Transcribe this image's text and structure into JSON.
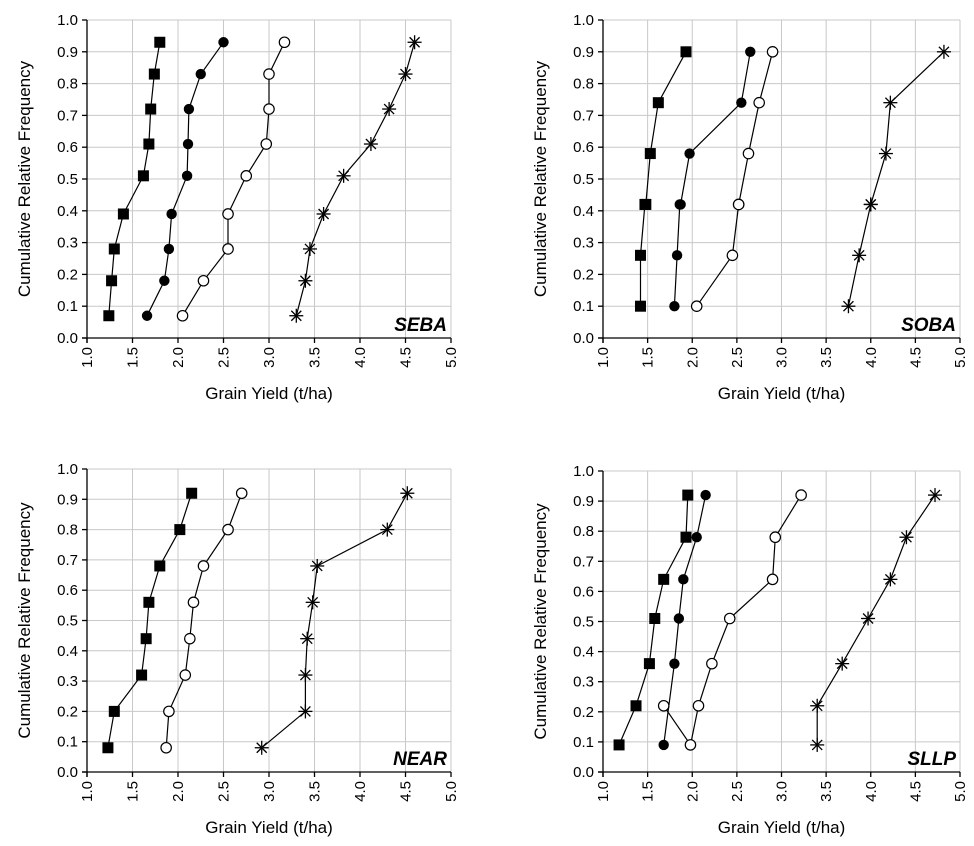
{
  "chart_data": [
    {
      "type": "line",
      "panel_label": "SEBA",
      "xlabel": "Grain Yield (t/ha)",
      "ylabel": "Cumulative Relative Frequency",
      "xlim": [
        1.0,
        5.0
      ],
      "ylim": [
        0.0,
        1.0
      ],
      "xticks": [
        "1.0",
        "1.5",
        "2.0",
        "2.5",
        "3.0",
        "3.5",
        "4.0",
        "4.5",
        "5.0"
      ],
      "yticks": [
        "0.0",
        "0.1",
        "0.2",
        "0.3",
        "0.4",
        "0.5",
        "0.6",
        "0.7",
        "0.8",
        "0.9",
        "1.0"
      ],
      "grid": true,
      "series": [
        {
          "marker": "square-filled",
          "x": [
            1.24,
            1.27,
            1.3,
            1.4,
            1.62,
            1.68,
            1.7,
            1.74,
            1.8
          ],
          "y": [
            0.07,
            0.18,
            0.28,
            0.39,
            0.51,
            0.61,
            0.72,
            0.83,
            0.93
          ]
        },
        {
          "marker": "circle-filled",
          "x": [
            1.66,
            1.85,
            1.9,
            1.93,
            2.1,
            2.11,
            2.12,
            2.25,
            2.5
          ],
          "y": [
            0.07,
            0.18,
            0.28,
            0.39,
            0.51,
            0.61,
            0.72,
            0.83,
            0.93
          ]
        },
        {
          "marker": "circle-open",
          "x": [
            2.05,
            2.28,
            2.55,
            2.55,
            2.75,
            2.97,
            3.0,
            3.0,
            3.17
          ],
          "y": [
            0.07,
            0.18,
            0.28,
            0.39,
            0.51,
            0.61,
            0.72,
            0.83,
            0.93
          ]
        },
        {
          "marker": "asterisk",
          "x": [
            3.3,
            3.4,
            3.45,
            3.6,
            3.82,
            4.12,
            4.32,
            4.5,
            4.6
          ],
          "y": [
            0.07,
            0.18,
            0.28,
            0.39,
            0.51,
            0.61,
            0.72,
            0.83,
            0.93
          ]
        }
      ]
    },
    {
      "type": "line",
      "panel_label": "SOBA",
      "xlabel": "Grain Yield (t/ha)",
      "ylabel": "Cumulative Relative Frequency",
      "xlim": [
        1.0,
        5.0
      ],
      "ylim": [
        0.0,
        1.0
      ],
      "xticks": [
        "1.0",
        "1.5",
        "2.0",
        "2.5",
        "3.0",
        "3.5",
        "4.0",
        "4.5",
        "5.0"
      ],
      "yticks": [
        "0.0",
        "0.1",
        "0.2",
        "0.3",
        "0.4",
        "0.5",
        "0.6",
        "0.7",
        "0.8",
        "0.9",
        "1.0"
      ],
      "grid": true,
      "series": [
        {
          "marker": "square-filled",
          "x": [
            1.42,
            1.42,
            1.47,
            1.48,
            1.53,
            1.62,
            1.93
          ],
          "y": [
            0.1,
            0.26,
            0.42,
            0.42,
            0.58,
            0.74,
            0.9
          ]
        },
        {
          "marker": "circle-filled",
          "x": [
            1.8,
            1.83,
            1.86,
            1.87,
            1.97,
            2.55,
            2.65
          ],
          "y": [
            0.1,
            0.26,
            0.42,
            0.42,
            0.58,
            0.74,
            0.9
          ]
        },
        {
          "marker": "circle-open",
          "x": [
            2.05,
            2.45,
            2.52,
            2.52,
            2.63,
            2.75,
            2.9
          ],
          "y": [
            0.1,
            0.26,
            0.42,
            0.42,
            0.58,
            0.74,
            0.9
          ]
        },
        {
          "marker": "asterisk",
          "x": [
            3.75,
            3.87,
            4.0,
            4.0,
            4.17,
            4.22,
            4.82
          ],
          "y": [
            0.1,
            0.26,
            0.42,
            0.42,
            0.58,
            0.74,
            0.9
          ]
        }
      ]
    },
    {
      "type": "line",
      "panel_label": "NEAR",
      "xlabel": "Grain Yield (t/ha)",
      "ylabel": "Cumulative Relative Frequency",
      "xlim": [
        1.0,
        5.0
      ],
      "ylim": [
        0.0,
        1.0
      ],
      "xticks": [
        "1.0",
        "1.5",
        "2.0",
        "2.5",
        "3.0",
        "3.5",
        "4.0",
        "4.5",
        "5.0"
      ],
      "yticks": [
        "0.0",
        "0.1",
        "0.2",
        "0.3",
        "0.4",
        "0.5",
        "0.6",
        "0.7",
        "0.8",
        "0.9",
        "1.0"
      ],
      "grid": true,
      "series": [
        {
          "marker": "square-filled",
          "x": [
            1.23,
            1.3,
            1.6,
            1.65,
            1.68,
            1.8,
            2.02,
            2.15
          ],
          "y": [
            0.08,
            0.2,
            0.32,
            0.44,
            0.56,
            0.68,
            0.8,
            0.92
          ]
        },
        {
          "marker": "circle-filled",
          "x": [],
          "y": []
        },
        {
          "marker": "circle-open",
          "x": [
            1.87,
            1.9,
            2.08,
            2.13,
            2.17,
            2.28,
            2.55,
            2.7
          ],
          "y": [
            0.08,
            0.2,
            0.32,
            0.44,
            0.56,
            0.68,
            0.8,
            0.92
          ]
        },
        {
          "marker": "asterisk",
          "x": [
            2.92,
            3.4,
            3.4,
            3.42,
            3.48,
            3.53,
            4.3,
            4.52
          ],
          "y": [
            0.08,
            0.2,
            0.32,
            0.44,
            0.56,
            0.68,
            0.8,
            0.92
          ]
        }
      ]
    },
    {
      "type": "line",
      "panel_label": "SLLP",
      "xlabel": "Grain Yield (t/ha)",
      "ylabel": "Cumulative Relative Frequency",
      "xlim": [
        1.0,
        5.0
      ],
      "ylim": [
        0.0,
        1.0
      ],
      "xticks": [
        "1.0",
        "1.5",
        "2.0",
        "2.5",
        "3.0",
        "3.5",
        "4.0",
        "4.5",
        "5.0"
      ],
      "yticks": [
        "0.0",
        "0.1",
        "0.2",
        "0.3",
        "0.4",
        "0.5",
        "0.6",
        "0.7",
        "0.8",
        "0.9",
        "1.0"
      ],
      "grid": true,
      "series": [
        {
          "marker": "square-filled",
          "x": [
            1.18,
            1.37,
            1.52,
            1.58,
            1.68,
            1.93,
            1.95
          ],
          "y": [
            0.09,
            0.22,
            0.36,
            0.51,
            0.64,
            0.78,
            0.92
          ]
        },
        {
          "marker": "circle-filled",
          "x": [
            1.68,
            1.8,
            1.85,
            1.9,
            2.05,
            2.15
          ],
          "y": [
            0.09,
            0.36,
            0.51,
            0.64,
            0.78,
            0.92
          ]
        },
        {
          "marker": "circle-open",
          "x": [
            1.68,
            1.98,
            2.07,
            2.22,
            2.42,
            2.9,
            2.93,
            3.22
          ],
          "y": [
            0.22,
            0.09,
            0.22,
            0.36,
            0.51,
            0.64,
            0.78,
            0.92
          ]
        },
        {
          "marker": "asterisk",
          "x": [
            3.4,
            3.4,
            3.68,
            3.97,
            4.22,
            4.4,
            4.72
          ],
          "y": [
            0.09,
            0.22,
            0.36,
            0.51,
            0.64,
            0.78,
            0.92
          ]
        }
      ]
    }
  ]
}
